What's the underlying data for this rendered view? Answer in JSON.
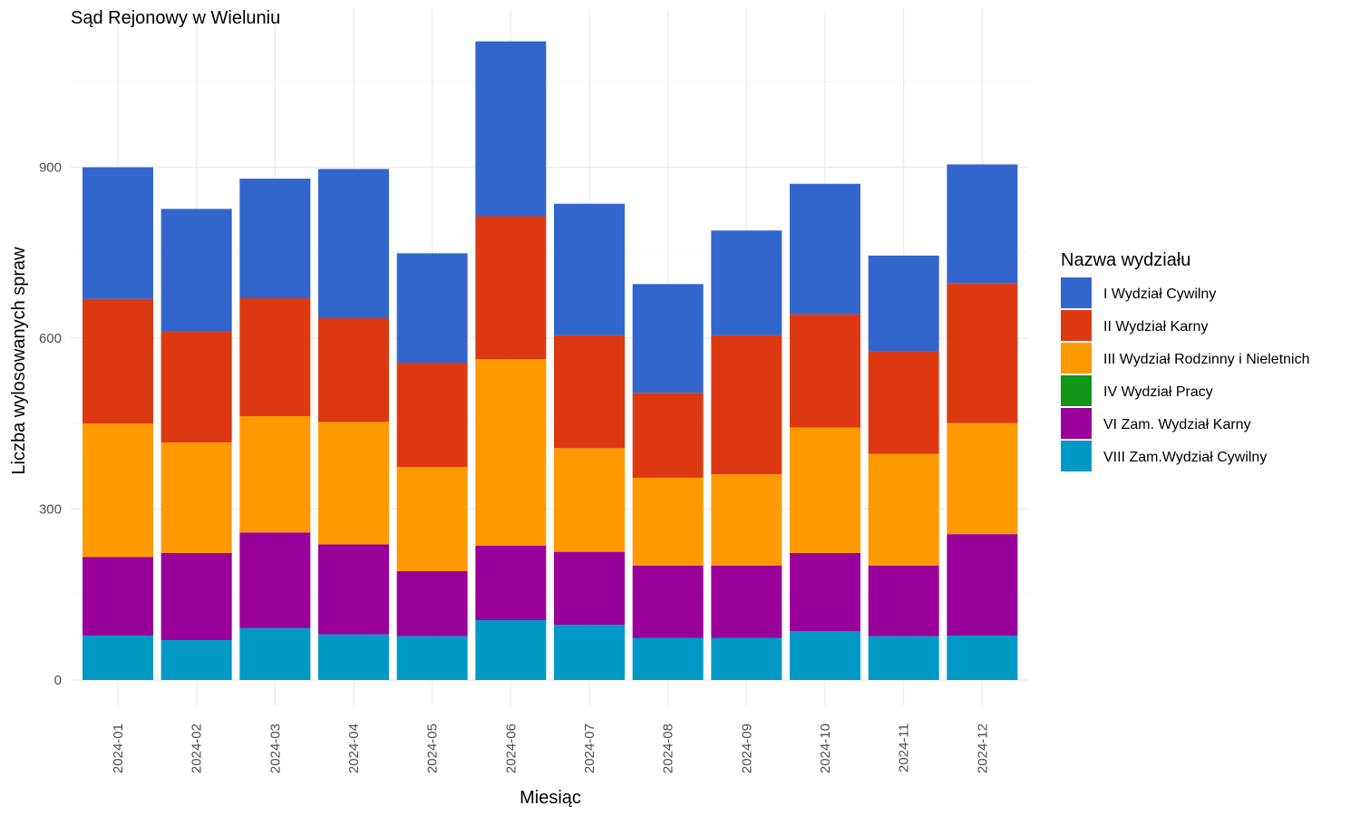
{
  "chart_data": {
    "type": "bar",
    "stacked": true,
    "title": "Sąd Rejonowy w Wieluniu",
    "xlabel": "Miesiąc",
    "ylabel": "Liczba wylosowanych spraw",
    "ylim": [
      0,
      1180
    ],
    "yticks": [
      0,
      300,
      600,
      900
    ],
    "grid": true,
    "legend_position": "right",
    "legend_title": "Nazwa wydziału",
    "categories": [
      "2024-01",
      "2024-02",
      "2024-03",
      "2024-04",
      "2024-05",
      "2024-06",
      "2024-07",
      "2024-08",
      "2024-09",
      "2024-10",
      "2024-11",
      "2024-12"
    ],
    "series": [
      {
        "name": "VIII Zam.Wydział Cywilny",
        "color": "#0099c6",
        "values": [
          78,
          70,
          91,
          80,
          77,
          105,
          97,
          74,
          74,
          86,
          77,
          78
        ]
      },
      {
        "name": "VI Zam. Wydział Karny",
        "color": "#990099",
        "values": [
          138,
          153,
          168,
          158,
          114,
          131,
          128,
          127,
          127,
          137,
          124,
          178
        ]
      },
      {
        "name": "IV Wydział Pracy",
        "color": "#109618",
        "values": [
          0,
          0,
          0,
          0,
          0,
          0,
          0,
          0,
          0,
          0,
          0,
          0
        ]
      },
      {
        "name": "III Wydział Rodzinny i Nieletnich",
        "color": "#ff9900",
        "values": [
          234,
          194,
          204,
          215,
          183,
          327,
          182,
          154,
          160,
          220,
          196,
          195
        ]
      },
      {
        "name": "II Wydział Karny",
        "color": "#dc3912",
        "values": [
          219,
          195,
          207,
          182,
          183,
          251,
          198,
          149,
          244,
          199,
          180,
          245
        ]
      },
      {
        "name": "I Wydział Cywilny",
        "color": "#3366cc",
        "values": [
          231,
          215,
          210,
          262,
          192,
          307,
          231,
          191,
          184,
          229,
          168,
          209
        ]
      }
    ]
  }
}
